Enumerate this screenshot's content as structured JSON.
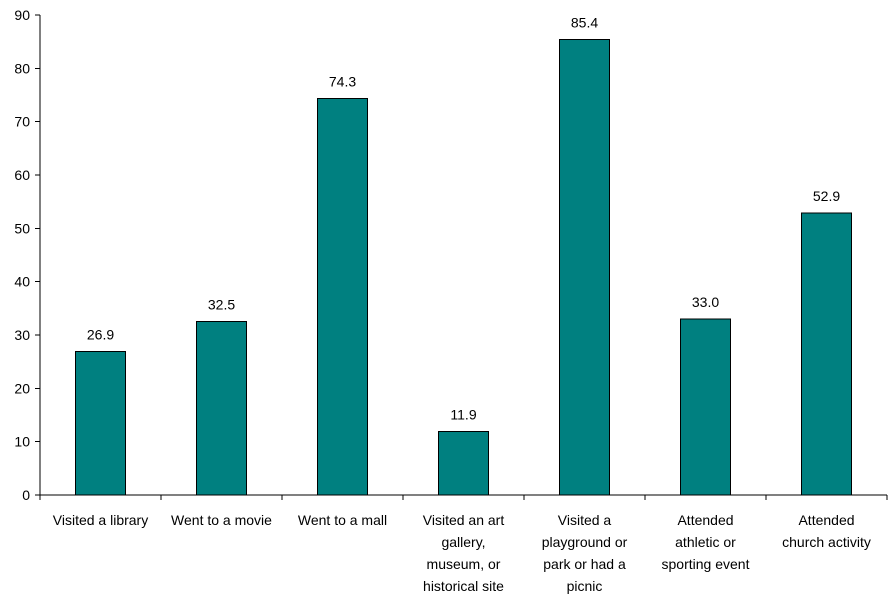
{
  "chart_data": {
    "type": "bar",
    "categories": [
      [
        "Visited a library"
      ],
      [
        "Went to a movie"
      ],
      [
        "Went to a mall"
      ],
      [
        "Visited an art",
        "gallery,",
        "museum, or",
        "historical site"
      ],
      [
        "Visited a",
        "playground or",
        "park or had a",
        "picnic"
      ],
      [
        "Attended",
        "athletic or",
        "sporting event"
      ],
      [
        "Attended",
        "church activity"
      ]
    ],
    "values": [
      26.9,
      32.5,
      74.3,
      11.9,
      85.4,
      33.0,
      52.9
    ],
    "value_labels": [
      "26.9",
      "32.5",
      "74.3",
      "11.9",
      "85.4",
      "33.0",
      "52.9"
    ],
    "ylim": [
      0,
      90
    ],
    "yticks": [
      0,
      10,
      20,
      30,
      40,
      50,
      60,
      70,
      80,
      90
    ],
    "grid": false,
    "legend": "none",
    "title": "",
    "xlabel": "",
    "ylabel": "",
    "colors": {
      "bar_fill": "#008080",
      "bar_stroke": "#000000",
      "axis": "#000000"
    }
  }
}
